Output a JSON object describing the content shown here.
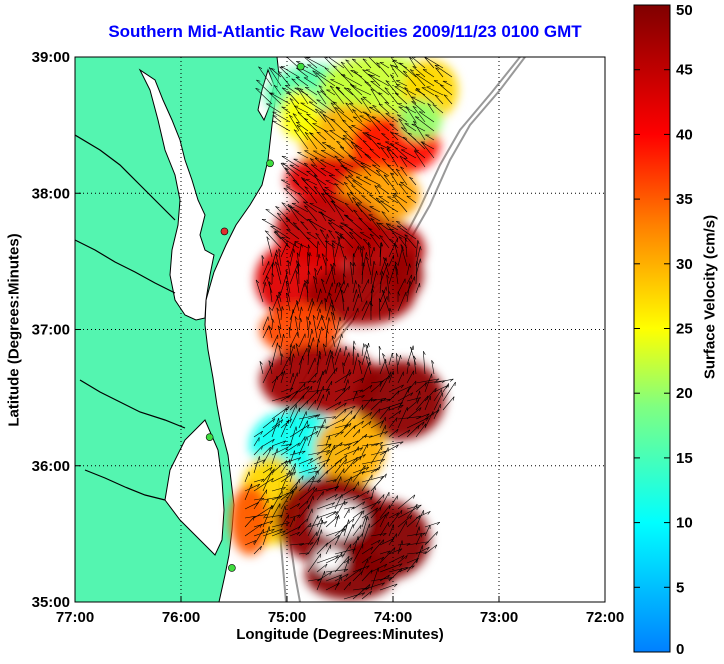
{
  "title": "Southern Mid-Atlantic Raw Velocities 2009/11/23 0100 GMT",
  "x_axis": {
    "label": "Longitude (Degrees:Minutes)",
    "ticks": [
      "77:00",
      "76:00",
      "75:00",
      "74:00",
      "73:00",
      "72:00"
    ]
  },
  "y_axis": {
    "label": "Latitude (Degrees:Minutes)",
    "ticks": [
      "39:00",
      "38:00",
      "37:00",
      "36:00",
      "35:00"
    ]
  },
  "colorbar": {
    "label": "Surface Velocity (cm/s)",
    "ticks": [
      "50",
      "45",
      "40",
      "35",
      "30",
      "25",
      "20",
      "15",
      "10",
      "5",
      "0"
    ],
    "min": 0,
    "max": 50
  },
  "map": {
    "extent": {
      "lon_min": -77,
      "lon_max": -72,
      "lat_min": 35,
      "lat_max": 39
    },
    "land_color": "#54f5b0",
    "water_color": "#ffffff",
    "grid": "dotted",
    "station_markers": [
      {
        "lon": -74.87,
        "lat": 38.93,
        "color": "#3fdc3f"
      },
      {
        "lon": -75.16,
        "lat": 38.22,
        "color": "#3fdc3f"
      },
      {
        "lon": -75.59,
        "lat": 37.72,
        "color": "#e03030"
      },
      {
        "lon": -75.73,
        "lat": 36.21,
        "color": "#3fdc3f"
      },
      {
        "lon": -75.52,
        "lat": 35.25,
        "color": "#3fdc3f"
      }
    ]
  }
}
